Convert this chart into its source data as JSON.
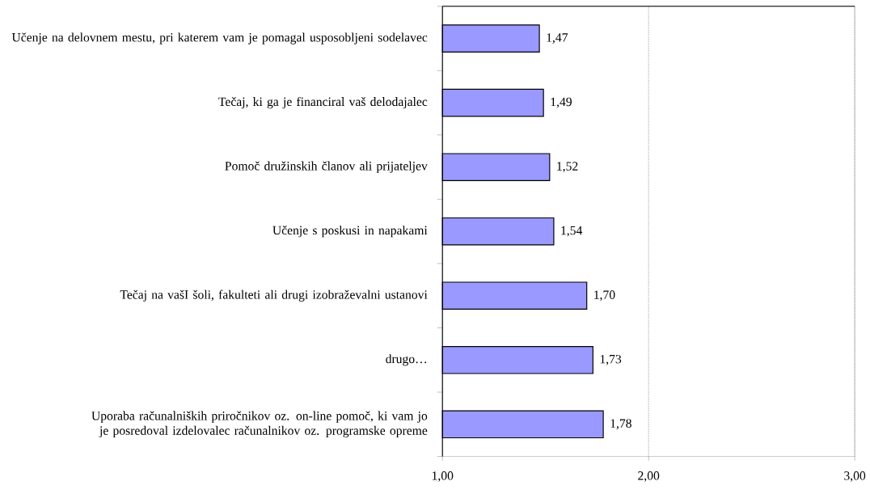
{
  "chart_data": {
    "type": "bar",
    "orientation": "horizontal",
    "categories": [
      "Učenje na delovnem mestu, pri katerem vam je pomagal usposobljeni sodelavec",
      "Tečaj, ki ga je financiral vaš delodajalec",
      "Pomoč družinskih članov ali prijateljev",
      "Učenje s poskusi in napakami",
      "Tečaj na vašI šoli, fakulteti ali drugi izobraževalni ustanovi",
      "drugo…",
      "Uporaba računalniških priročnikov oz. on-line pomoč, ki vam jo je posredoval izdelovalec računalnikov oz. programske opreme"
    ],
    "values": [
      1.47,
      1.49,
      1.52,
      1.54,
      1.7,
      1.73,
      1.78
    ],
    "value_labels": [
      "1,47",
      "1,49",
      "1,52",
      "1,54",
      "1,70",
      "1,73",
      "1,78"
    ],
    "color": "#9999ff",
    "xlim": [
      1,
      3
    ],
    "xticks": [
      {
        "value": 1,
        "label": "1,00"
      },
      {
        "value": 2,
        "label": "2,00"
      },
      {
        "value": 3,
        "label": "3,00"
      }
    ],
    "grid": "x"
  }
}
